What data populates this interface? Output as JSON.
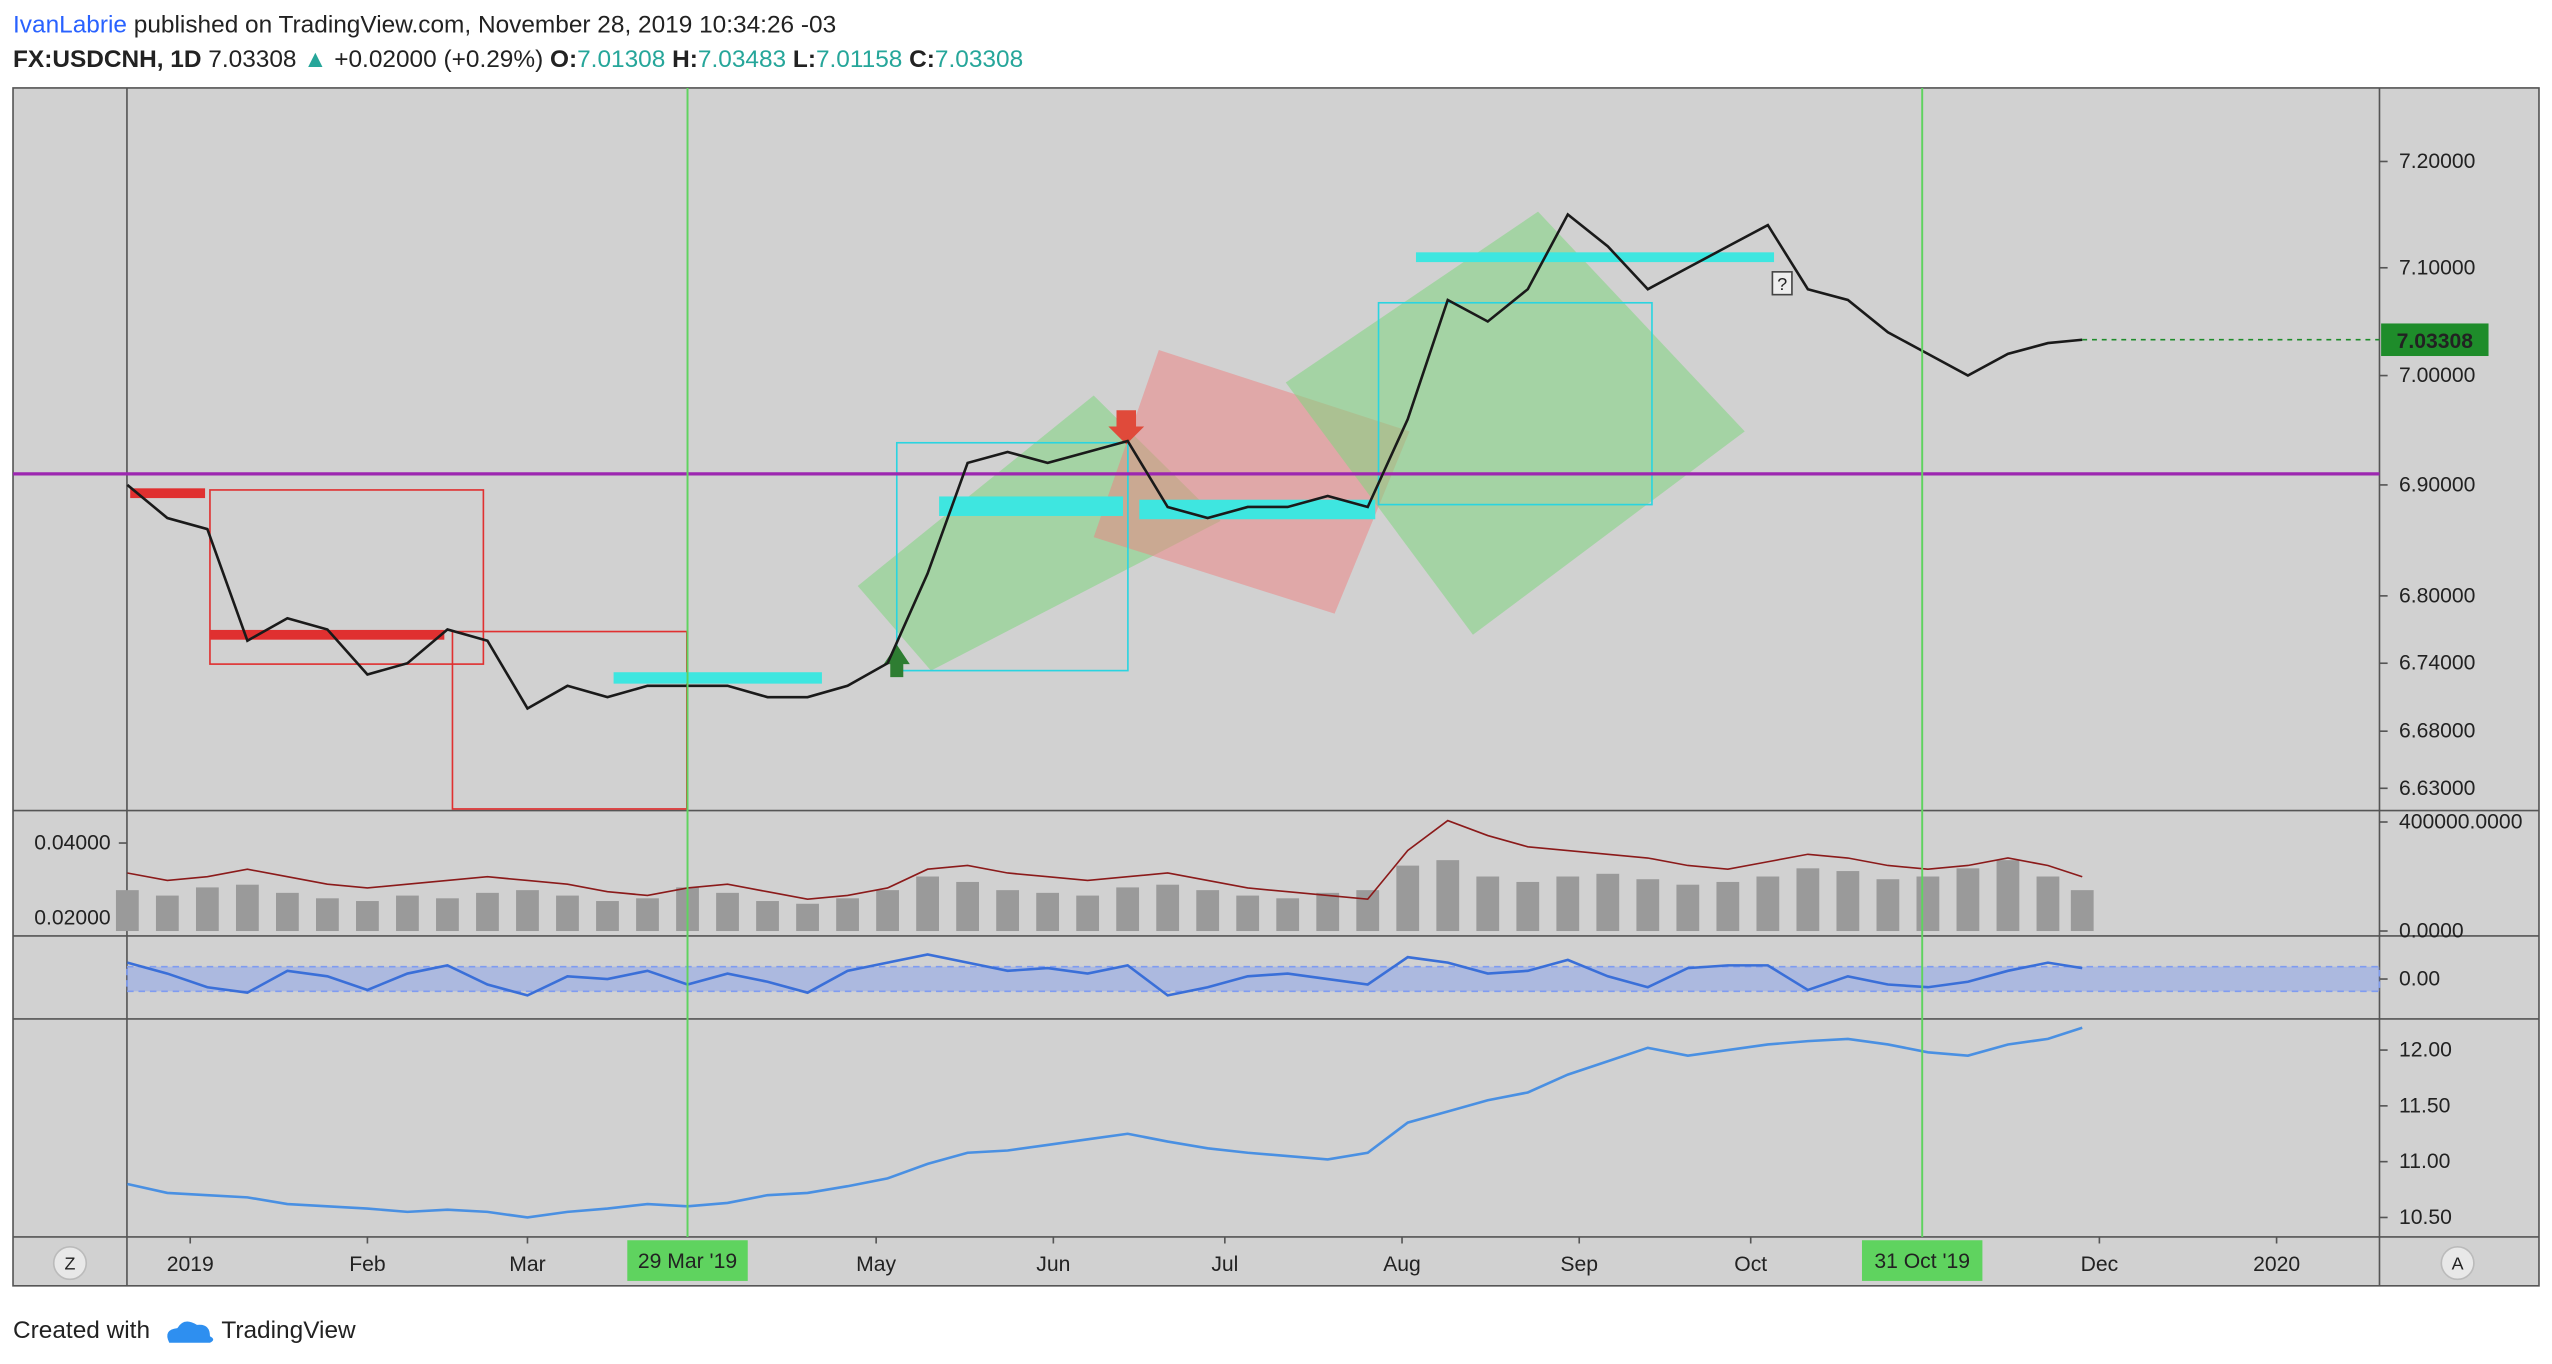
{
  "header": {
    "author": "IvanLabrie",
    "published": "published on TradingView.com, November 28, 2019 10:34:26 -03",
    "symbol": "FX:USDCNH, 1D",
    "price": "7.03308",
    "arrow": "▲",
    "change": "+0.02000 (+0.29%)",
    "ohlc": [
      {
        "label": "O:",
        "value": "7.01308"
      },
      {
        "label": "H:",
        "value": "7.03483"
      },
      {
        "label": "L:",
        "value": "7.01158"
      },
      {
        "label": "C:",
        "value": "7.03308"
      }
    ]
  },
  "footer": {
    "created": "Created with",
    "brand": "TradingView"
  },
  "corners": [
    "Z",
    "A"
  ],
  "note": "?",
  "chart_data": [
    {
      "type": "line",
      "color": "#1a1a1a",
      "log": true,
      "x": [
        "2018-12-21",
        "2018-12-28",
        "2019-01-04",
        "2019-01-11",
        "2019-01-18",
        "2019-01-25",
        "2019-02-01",
        "2019-02-08",
        "2019-02-15",
        "2019-02-22",
        "2019-03-01",
        "2019-03-08",
        "2019-03-15",
        "2019-03-22",
        "2019-03-29",
        "2019-04-05",
        "2019-04-12",
        "2019-04-19",
        "2019-04-26",
        "2019-05-03",
        "2019-05-10",
        "2019-05-17",
        "2019-05-24",
        "2019-05-31",
        "2019-06-07",
        "2019-06-14",
        "2019-06-21",
        "2019-06-28",
        "2019-07-05",
        "2019-07-12",
        "2019-07-19",
        "2019-07-26",
        "2019-08-02",
        "2019-08-09",
        "2019-08-16",
        "2019-08-23",
        "2019-08-30",
        "2019-09-06",
        "2019-09-13",
        "2019-09-20",
        "2019-09-27",
        "2019-10-04",
        "2019-10-11",
        "2019-10-18",
        "2019-10-25",
        "2019-11-01",
        "2019-11-08",
        "2019-11-15",
        "2019-11-22",
        "2019-11-28"
      ],
      "values": [
        6.9,
        6.87,
        6.86,
        6.76,
        6.78,
        6.77,
        6.73,
        6.74,
        6.77,
        6.76,
        6.7,
        6.72,
        6.71,
        6.72,
        6.72,
        6.72,
        6.71,
        6.71,
        6.72,
        6.74,
        6.82,
        6.92,
        6.93,
        6.92,
        6.93,
        6.94,
        6.88,
        6.87,
        6.88,
        6.88,
        6.89,
        6.88,
        6.96,
        7.07,
        7.05,
        7.08,
        7.15,
        7.12,
        7.08,
        7.1,
        7.12,
        7.14,
        7.08,
        7.07,
        7.04,
        7.02,
        7.0,
        7.02,
        7.03,
        7.03308
      ],
      "ylim": [
        6.612,
        7.27
      ],
      "yticks": [
        {
          "value": 7.2,
          "label": "7.20000"
        },
        {
          "value": 7.1,
          "label": "7.10000"
        },
        {
          "value": 7.0,
          "label": "7.00000"
        },
        {
          "value": 6.9,
          "label": "6.90000"
        },
        {
          "value": 6.8,
          "label": "6.80000"
        },
        {
          "value": 6.74,
          "label": "6.74000"
        },
        {
          "value": 6.68,
          "label": "6.68000"
        },
        {
          "value": 6.63,
          "label": "6.63000"
        }
      ],
      "xlim": [
        "2018-12-01",
        "2020-01-19"
      ],
      "xticks": [
        {
          "value": "2019-01-01",
          "label": "2019"
        },
        {
          "value": "2019-02-01",
          "label": "Feb"
        },
        {
          "value": "2019-03-01",
          "label": "Mar"
        },
        {
          "value": "2019-05-01",
          "label": "May"
        },
        {
          "value": "2019-06-01",
          "label": "Jun"
        },
        {
          "value": "2019-07-01",
          "label": "Jul"
        },
        {
          "value": "2019-08-01",
          "label": "Aug"
        },
        {
          "value": "2019-09-01",
          "label": "Sep"
        },
        {
          "value": "2019-10-01",
          "label": "Oct"
        },
        {
          "value": "2019-12-01",
          "label": "Dec"
        },
        {
          "value": "2020-01-01",
          "label": "2020"
        }
      ],
      "markers": [
        {
          "value": "2019-03-29",
          "label": "29 Mar '19"
        },
        {
          "value": "2019-10-31",
          "label": "31 Oct '19"
        }
      ],
      "marker_color": "#5fd35f",
      "level": 6.91,
      "level_color": "#9c27b0",
      "last_value": 7.03308,
      "last_color": "#1e8c2a"
    },
    {
      "type": "bar",
      "x": [
        "2018-12-21",
        "2018-12-28",
        "2019-01-04",
        "2019-01-11",
        "2019-01-18",
        "2019-01-25",
        "2019-02-01",
        "2019-02-08",
        "2019-02-15",
        "2019-02-22",
        "2019-03-01",
        "2019-03-08",
        "2019-03-15",
        "2019-03-22",
        "2019-03-29",
        "2019-04-05",
        "2019-04-12",
        "2019-04-19",
        "2019-04-26",
        "2019-05-03",
        "2019-05-10",
        "2019-05-17",
        "2019-05-24",
        "2019-05-31",
        "2019-06-07",
        "2019-06-14",
        "2019-06-21",
        "2019-06-28",
        "2019-07-05",
        "2019-07-12",
        "2019-07-19",
        "2019-07-26",
        "2019-08-02",
        "2019-08-09",
        "2019-08-16",
        "2019-08-23",
        "2019-08-30",
        "2019-09-06",
        "2019-09-13",
        "2019-09-20",
        "2019-09-27",
        "2019-10-04",
        "2019-10-11",
        "2019-10-18",
        "2019-10-25",
        "2019-11-01",
        "2019-11-08",
        "2019-11-15",
        "2019-11-22",
        "2019-11-28"
      ],
      "series": [
        {
          "color": "#9a9a9a",
          "values": [
            150000,
            130000,
            160000,
            170000,
            140000,
            120000,
            110000,
            130000,
            120000,
            140000,
            150000,
            130000,
            110000,
            120000,
            160000,
            140000,
            110000,
            100000,
            120000,
            150000,
            200000,
            180000,
            150000,
            140000,
            130000,
            160000,
            170000,
            150000,
            130000,
            120000,
            140000,
            150000,
            240000,
            260000,
            200000,
            180000,
            200000,
            210000,
            190000,
            170000,
            180000,
            200000,
            230000,
            220000,
            190000,
            200000,
            230000,
            260000,
            200000,
            150000
          ]
        },
        {
          "color": "#8b1a1a",
          "type": "line",
          "axis": "y2",
          "values": [
            0.032,
            0.03,
            0.031,
            0.033,
            0.031,
            0.029,
            0.028,
            0.029,
            0.03,
            0.031,
            0.03,
            0.029,
            0.027,
            0.026,
            0.028,
            0.029,
            0.027,
            0.025,
            0.026,
            0.028,
            0.033,
            0.034,
            0.032,
            0.031,
            0.03,
            0.031,
            0.032,
            0.03,
            0.028,
            0.027,
            0.026,
            0.025,
            0.038,
            0.046,
            0.042,
            0.039,
            0.038,
            0.037,
            0.036,
            0.034,
            0.033,
            0.035,
            0.037,
            0.036,
            0.034,
            0.033,
            0.034,
            0.036,
            0.034,
            0.031
          ]
        }
      ],
      "ylim": [
        0,
        430000
      ],
      "yticks": [
        {
          "value": 400000,
          "label": "400000.0000"
        },
        {
          "value": 0,
          "label": "0.0000"
        }
      ],
      "y2lim": [
        0.0165,
        0.0478
      ],
      "y2ticks": [
        {
          "value": 0.04,
          "label": "0.04000"
        },
        {
          "value": 0.02,
          "label": "0.02000"
        }
      ]
    },
    {
      "type": "line",
      "color": "#3a6fd8",
      "x": [
        "2018-12-21",
        "2018-12-28",
        "2019-01-04",
        "2019-01-11",
        "2019-01-18",
        "2019-01-25",
        "2019-02-01",
        "2019-02-08",
        "2019-02-15",
        "2019-02-22",
        "2019-03-01",
        "2019-03-08",
        "2019-03-15",
        "2019-03-22",
        "2019-03-29",
        "2019-04-05",
        "2019-04-12",
        "2019-04-19",
        "2019-04-26",
        "2019-05-03",
        "2019-05-10",
        "2019-05-17",
        "2019-05-24",
        "2019-05-31",
        "2019-06-07",
        "2019-06-14",
        "2019-06-21",
        "2019-06-28",
        "2019-07-05",
        "2019-07-12",
        "2019-07-19",
        "2019-07-26",
        "2019-08-02",
        "2019-08-09",
        "2019-08-16",
        "2019-08-23",
        "2019-08-30",
        "2019-09-06",
        "2019-09-13",
        "2019-09-20",
        "2019-09-27",
        "2019-10-04",
        "2019-10-11",
        "2019-10-18",
        "2019-10-25",
        "2019-11-01",
        "2019-11-08",
        "2019-11-15",
        "2019-11-22",
        "2019-11-28"
      ],
      "values": [
        0.6,
        0.2,
        -0.3,
        -0.5,
        0.3,
        0.1,
        -0.4,
        0.2,
        0.5,
        -0.2,
        -0.6,
        0.1,
        0.0,
        0.3,
        -0.2,
        0.2,
        -0.1,
        -0.5,
        0.3,
        0.6,
        0.9,
        0.6,
        0.3,
        0.4,
        0.2,
        0.5,
        -0.6,
        -0.3,
        0.1,
        0.2,
        0.0,
        -0.2,
        0.8,
        0.6,
        0.2,
        0.3,
        0.7,
        0.1,
        -0.3,
        0.4,
        0.5,
        0.5,
        -0.4,
        0.1,
        -0.2,
        -0.3,
        -0.1,
        0.3,
        0.6,
        0.4
      ],
      "ylim": [
        -1.4,
        1.4
      ],
      "yticks": [
        {
          "value": 0,
          "label": "0.00"
        }
      ],
      "band": [
        -0.45,
        0.45
      ],
      "band_color": "#7f9cf0"
    },
    {
      "type": "line",
      "color": "#4a90e2",
      "x": [
        "2018-12-21",
        "2018-12-28",
        "2019-01-04",
        "2019-01-11",
        "2019-01-18",
        "2019-01-25",
        "2019-02-01",
        "2019-02-08",
        "2019-02-15",
        "2019-02-22",
        "2019-03-01",
        "2019-03-08",
        "2019-03-15",
        "2019-03-22",
        "2019-03-29",
        "2019-04-05",
        "2019-04-12",
        "2019-04-19",
        "2019-04-26",
        "2019-05-03",
        "2019-05-10",
        "2019-05-17",
        "2019-05-24",
        "2019-05-31",
        "2019-06-07",
        "2019-06-14",
        "2019-06-21",
        "2019-06-28",
        "2019-07-05",
        "2019-07-12",
        "2019-07-19",
        "2019-07-26",
        "2019-08-02",
        "2019-08-09",
        "2019-08-16",
        "2019-08-23",
        "2019-08-30",
        "2019-09-06",
        "2019-09-13",
        "2019-09-20",
        "2019-09-27",
        "2019-10-04",
        "2019-10-11",
        "2019-10-18",
        "2019-10-25",
        "2019-11-01",
        "2019-11-08",
        "2019-11-15",
        "2019-11-22",
        "2019-11-28"
      ],
      "values": [
        10.8,
        10.72,
        10.7,
        10.68,
        10.62,
        10.6,
        10.58,
        10.55,
        10.57,
        10.55,
        10.5,
        10.55,
        10.58,
        10.62,
        10.6,
        10.63,
        10.7,
        10.72,
        10.78,
        10.85,
        10.98,
        11.08,
        11.1,
        11.15,
        11.2,
        11.25,
        11.18,
        11.12,
        11.08,
        11.05,
        11.02,
        11.08,
        11.35,
        11.45,
        11.55,
        11.62,
        11.78,
        11.9,
        12.02,
        11.95,
        12.0,
        12.05,
        12.08,
        12.1,
        12.05,
        11.98,
        11.95,
        12.05,
        12.1,
        12.2
      ],
      "ylim": [
        10.325,
        12.25
      ],
      "yticks": [
        {
          "value": 12,
          "label": "12.00"
        },
        {
          "value": 11.5,
          "label": "11.50"
        },
        {
          "value": 11,
          "label": "11.00"
        },
        {
          "value": 10.5,
          "label": "10.50"
        }
      ]
    }
  ]
}
